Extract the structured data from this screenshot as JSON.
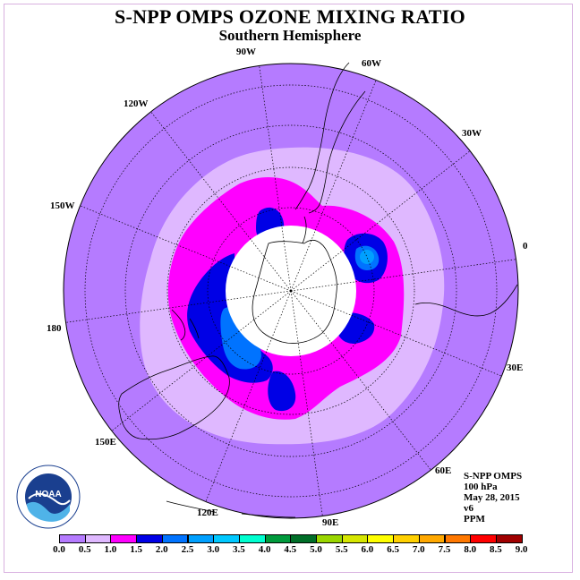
{
  "title": "S-NPP OMPS OZONE MIXING RATIO",
  "subtitle": "Southern Hemisphere",
  "longitude_labels": {
    "w90": "90W",
    "w60": "60W",
    "w30": "30W",
    "w120": "120W",
    "w150": "150W",
    "e0": "0",
    "lon180": "180",
    "e30": "30E",
    "e60": "60E",
    "e90": "90E",
    "e120": "120E",
    "e150": "150E"
  },
  "info": {
    "instrument": "S-NPP OMPS",
    "level": "100 hPa",
    "date": "May 28, 2015",
    "version": "v6",
    "units": "PPM"
  },
  "logo": {
    "text": "NOAA",
    "ring_text": "NATIONAL OCEANIC AND ATMOSPHERIC ADMINISTRATION · U.S. DEPARTMENT OF COMMERCE"
  },
  "colorbar": {
    "labels": [
      "0.0",
      "0.5",
      "1.0",
      "1.5",
      "2.0",
      "2.5",
      "3.0",
      "3.5",
      "4.0",
      "4.5",
      "5.0",
      "5.5",
      "6.0",
      "6.5",
      "7.0",
      "7.5",
      "8.0",
      "8.5",
      "9.0"
    ],
    "colors": [
      "#b57bff",
      "#dfb8ff",
      "#ff00ff",
      "#0000e6",
      "#0073ff",
      "#00a0ff",
      "#00c8ff",
      "#00ffd0",
      "#009a3c",
      "#006e28",
      "#9ad600",
      "#d6e600",
      "#ffff00",
      "#ffd000",
      "#ffa800",
      "#ff7800",
      "#ff0000",
      "#a00000"
    ]
  },
  "colors": {
    "background_field": "#b57bff",
    "ring_light": "#dfb8ff",
    "ring_magenta": "#ff00ff",
    "ring_blue": "#0000e6",
    "ring_mid_blue": "#0073ff",
    "ring_light_blue": "#00a0ff",
    "pole_cap": "#ffffff"
  }
}
